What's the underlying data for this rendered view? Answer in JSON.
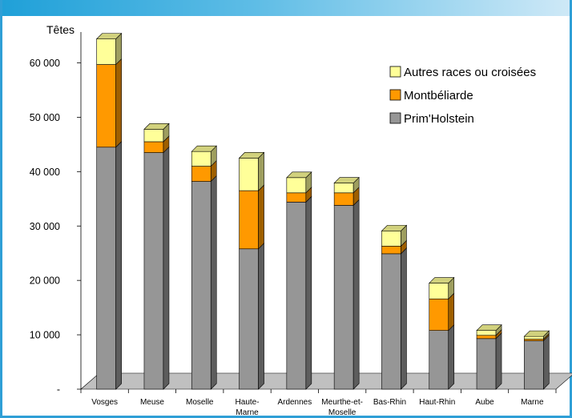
{
  "chart_data": {
    "type": "bar",
    "stacked": true,
    "three_d": true,
    "ylabel": "Têtes",
    "ylim": [
      0,
      65000
    ],
    "yticks": [
      0,
      10000,
      20000,
      30000,
      40000,
      50000,
      60000
    ],
    "ytick_labels": [
      "-",
      "10 000",
      "20 000",
      "30 000",
      "40 000",
      "50 000",
      "60 000"
    ],
    "categories": [
      [
        "Vosges"
      ],
      [
        "Meuse"
      ],
      [
        "Moselle"
      ],
      [
        "Haute-",
        "Marne"
      ],
      [
        "Ardennes"
      ],
      [
        "Meurthe-et-",
        "Moselle"
      ],
      [
        "Bas-Rhin"
      ],
      [
        "Haut-Rhin"
      ],
      [
        "Aube"
      ],
      [
        "Marne"
      ]
    ],
    "series": [
      {
        "name": "Prim'Holstein",
        "color": "#969696",
        "values": [
          44500,
          43500,
          38200,
          25800,
          34400,
          33800,
          24900,
          10800,
          9300,
          8900
        ]
      },
      {
        "name": "Montbéliarde",
        "color": "#ff9900",
        "values": [
          15200,
          2000,
          2800,
          10700,
          1700,
          2300,
          1400,
          5800,
          600,
          300
        ]
      },
      {
        "name": "Autres races ou croisées",
        "color": "#ffff99",
        "values": [
          4700,
          2300,
          2700,
          6000,
          2800,
          1800,
          2800,
          2900,
          900,
          500
        ]
      }
    ],
    "legend_position": "top-right",
    "grid": false
  }
}
